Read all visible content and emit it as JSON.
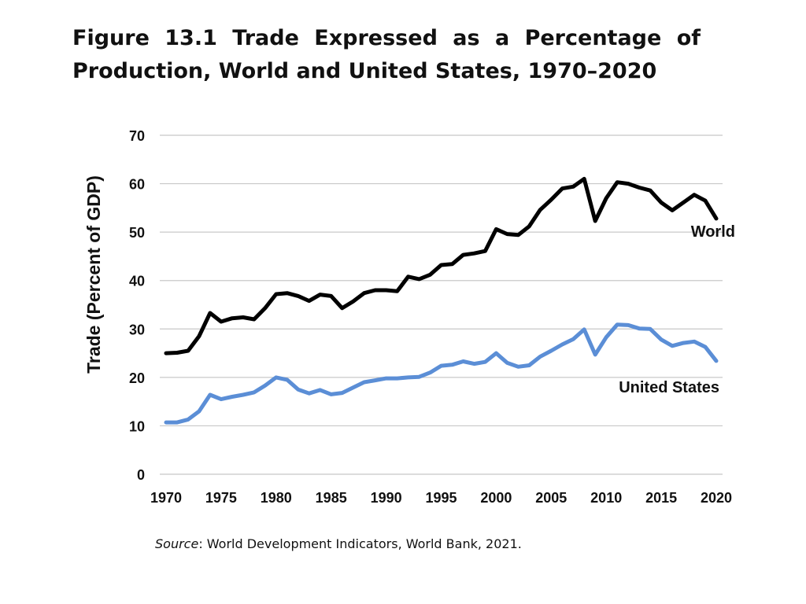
{
  "figure": {
    "title": "Figure 13.1 Trade Expressed as a Percentage of Production, World and United States, 1970–2020"
  },
  "source": {
    "lead": "Source",
    "text": ": World Development Indicators, World Bank, 2021."
  },
  "chart_data": {
    "type": "line",
    "title": "Figure 13.1 Trade Expressed as a Percentage of Production, World and United States, 1970–2020",
    "xlabel": "",
    "ylabel": "Trade (Percent of GDP)",
    "xlim": [
      1970,
      2020
    ],
    "ylim": [
      0,
      70
    ],
    "grid": true,
    "xticks": [
      1970,
      1975,
      1980,
      1985,
      1990,
      1995,
      2000,
      2005,
      2010,
      2015,
      2020
    ],
    "yticks": [
      0,
      10,
      20,
      30,
      40,
      50,
      60,
      70
    ],
    "x": [
      1970,
      1971,
      1972,
      1973,
      1974,
      1975,
      1976,
      1977,
      1978,
      1979,
      1980,
      1981,
      1982,
      1983,
      1984,
      1985,
      1986,
      1987,
      1988,
      1989,
      1990,
      1991,
      1992,
      1993,
      1994,
      1995,
      1996,
      1997,
      1998,
      1999,
      2000,
      2001,
      2002,
      2003,
      2004,
      2005,
      2006,
      2007,
      2008,
      2009,
      2010,
      2011,
      2012,
      2013,
      2014,
      2015,
      2016,
      2017,
      2018,
      2019,
      2020
    ],
    "series": [
      {
        "name": "World",
        "color": "#000000",
        "values": [
          25.0,
          25.1,
          25.5,
          28.5,
          33.3,
          31.5,
          32.2,
          32.4,
          32.0,
          34.3,
          37.2,
          37.4,
          36.8,
          35.8,
          37.1,
          36.8,
          34.3,
          35.7,
          37.4,
          38.0,
          38.0,
          37.8,
          40.8,
          40.3,
          41.2,
          43.2,
          43.4,
          45.3,
          45.6,
          46.1,
          50.6,
          49.6,
          49.4,
          51.2,
          54.6,
          56.7,
          59.0,
          59.4,
          61.0,
          52.3,
          57.0,
          60.3,
          60.0,
          59.2,
          58.6,
          56.1,
          54.5,
          56.1,
          57.7,
          56.5,
          52.8
        ]
      },
      {
        "name": "United States",
        "color": "#5b8ed6",
        "values": [
          10.7,
          10.7,
          11.3,
          13.0,
          16.4,
          15.5,
          16.0,
          16.4,
          16.9,
          18.3,
          20.0,
          19.5,
          17.5,
          16.7,
          17.4,
          16.5,
          16.8,
          17.9,
          19.0,
          19.4,
          19.8,
          19.8,
          20.0,
          20.1,
          21.0,
          22.4,
          22.6,
          23.3,
          22.8,
          23.2,
          25.0,
          23.0,
          22.2,
          22.5,
          24.3,
          25.5,
          26.8,
          27.9,
          29.9,
          24.7,
          28.3,
          30.9,
          30.8,
          30.1,
          30.0,
          27.8,
          26.5,
          27.1,
          27.4,
          26.3,
          23.4
        ]
      }
    ]
  }
}
